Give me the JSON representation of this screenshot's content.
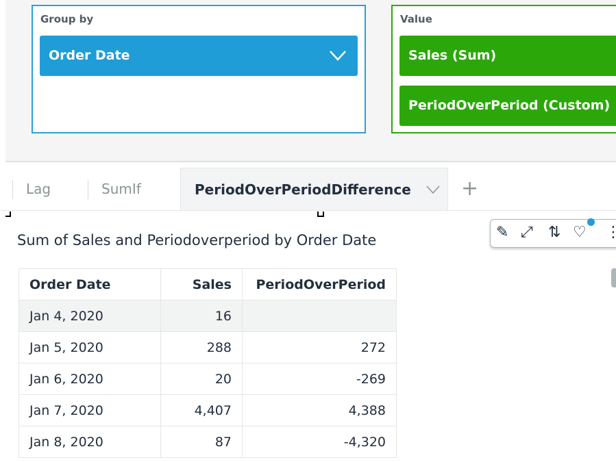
{
  "field_wells": {
    "group_by": {
      "label": "Group by",
      "fields": [
        "Order Date"
      ],
      "color": "#1f9dd6"
    },
    "value": {
      "label": "Value",
      "fields": [
        "Sales (Sum)",
        "PeriodOverPeriod (Custom)"
      ],
      "color": "#2ca70a"
    }
  },
  "sheet_tabs": {
    "tabs": [
      "Lag",
      "SumIf",
      "PeriodOverPeriodDifference"
    ],
    "active": "PeriodOverPeriodDifference",
    "add_label": "+"
  },
  "visual": {
    "title": "Sum of Sales and Periodoverperiod by Order Date",
    "toolbar_icons": [
      "pencil-icon",
      "expand-icon",
      "swap-icon",
      "lightbulb-icon",
      "more-icon"
    ],
    "table": {
      "columns": [
        "Order Date",
        "Sales",
        "PeriodOverPeriod"
      ],
      "rows": [
        [
          "Jan 4, 2020",
          "16",
          ""
        ],
        [
          "Jan 5, 2020",
          "288",
          "272"
        ],
        [
          "Jan 6, 2020",
          "20",
          "-269"
        ],
        [
          "Jan 7, 2020",
          "4,407",
          "4,388"
        ],
        [
          "Jan 8, 2020",
          "87",
          "-4,320"
        ]
      ]
    }
  }
}
